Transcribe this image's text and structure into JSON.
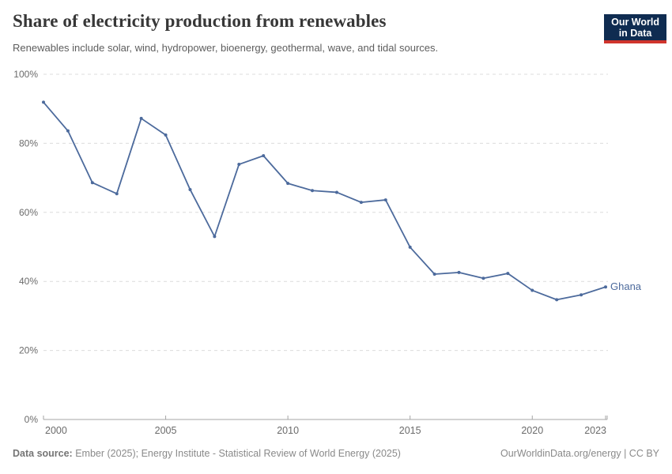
{
  "header": {
    "title": "Share of electricity production from renewables",
    "subtitle": "Renewables include solar, wind, hydropower, bioenergy, geothermal, wave, and tidal sources."
  },
  "logo": {
    "line1": "Our World",
    "line2": "in Data",
    "bg_color": "#0f2c51",
    "accent_color": "#d0342c"
  },
  "chart_data": {
    "type": "line",
    "title": "Share of electricity production from renewables",
    "xlabel": "",
    "ylabel": "",
    "x": [
      2000,
      2001,
      2002,
      2003,
      2004,
      2005,
      2006,
      2007,
      2008,
      2009,
      2010,
      2011,
      2012,
      2013,
      2014,
      2015,
      2016,
      2017,
      2018,
      2019,
      2020,
      2021,
      2022,
      2023
    ],
    "series": [
      {
        "name": "Ghana",
        "color": "#4C6A9C",
        "values": [
          91.9,
          83.6,
          68.6,
          65.4,
          87.2,
          82.4,
          66.6,
          53.0,
          73.9,
          76.4,
          68.4,
          66.3,
          65.8,
          62.9,
          63.6,
          49.9,
          42.1,
          42.6,
          40.9,
          42.3,
          37.4,
          34.7,
          36.1,
          38.4
        ]
      }
    ],
    "ylim": [
      0,
      100
    ],
    "y_ticks": [
      {
        "value": 0,
        "label": "0%"
      },
      {
        "value": 20,
        "label": "20%"
      },
      {
        "value": 40,
        "label": "40%"
      },
      {
        "value": 60,
        "label": "60%"
      },
      {
        "value": 80,
        "label": "80%"
      },
      {
        "value": 100,
        "label": "100%"
      }
    ],
    "x_ticks": [
      {
        "value": 2000,
        "label": "2000"
      },
      {
        "value": 2005,
        "label": "2005"
      },
      {
        "value": 2010,
        "label": "2010"
      },
      {
        "value": 2015,
        "label": "2015"
      },
      {
        "value": 2020,
        "label": "2020"
      },
      {
        "value": 2023,
        "label": "2023"
      }
    ],
    "grid": "horizontal-dashed",
    "legend": "end-of-line-label",
    "colors": {
      "grid": "#dcdcdc",
      "axis": "#a5a5a5",
      "tick_label": "#6b6b6b",
      "marker_dots": true
    }
  },
  "footer": {
    "datasource_label": "Data source:",
    "datasource_text": "Ember (2025); Energy Institute - Statistical Review of World Energy (2025)",
    "credit": "OurWorldinData.org/energy | CC BY"
  }
}
